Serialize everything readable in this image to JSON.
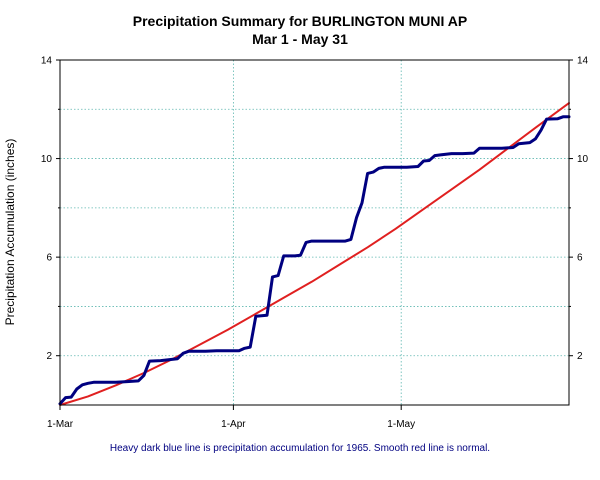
{
  "chart_data": {
    "type": "line",
    "title": "Precipitation Summary for BURLINGTON MUNI AP",
    "subtitle": "Mar 1 - May 31",
    "ylabel": "Precipitation Accumulation (inches)",
    "caption": "Heavy dark blue line is precipitation accumulation for 1965. Smooth red line is normal.",
    "x_range_days": [
      0,
      91
    ],
    "ylim": [
      0,
      14
    ],
    "yticks": [
      2,
      6,
      10,
      14
    ],
    "yticks_minor": [
      4,
      8,
      12
    ],
    "xticks": [
      {
        "day": 0,
        "label": "1-Mar"
      },
      {
        "day": 31,
        "label": "1-Apr"
      },
      {
        "day": 61,
        "label": "1-May"
      }
    ],
    "grid": true,
    "series": [
      {
        "color": "#000080",
        "points": [
          [
            0,
            0.05
          ],
          [
            1,
            0.3
          ],
          [
            2,
            0.32
          ],
          [
            3,
            0.65
          ],
          [
            4,
            0.82
          ],
          [
            5,
            0.88
          ],
          [
            6,
            0.92
          ],
          [
            8,
            0.92
          ],
          [
            10,
            0.92
          ],
          [
            12,
            0.95
          ],
          [
            14,
            0.98
          ],
          [
            15,
            1.2
          ],
          [
            16,
            1.78
          ],
          [
            18,
            1.8
          ],
          [
            20,
            1.85
          ],
          [
            21,
            1.88
          ],
          [
            22,
            2.1
          ],
          [
            23,
            2.18
          ],
          [
            24,
            2.18
          ],
          [
            26,
            2.18
          ],
          [
            28,
            2.2
          ],
          [
            30,
            2.2
          ],
          [
            32,
            2.2
          ],
          [
            33,
            2.3
          ],
          [
            34,
            2.35
          ],
          [
            35,
            3.6
          ],
          [
            36,
            3.62
          ],
          [
            37,
            3.64
          ],
          [
            38,
            5.2
          ],
          [
            39,
            5.25
          ],
          [
            40,
            6.05
          ],
          [
            41,
            6.05
          ],
          [
            42,
            6.05
          ],
          [
            43,
            6.08
          ],
          [
            44,
            6.6
          ],
          [
            45,
            6.65
          ],
          [
            47,
            6.65
          ],
          [
            49,
            6.65
          ],
          [
            51,
            6.65
          ],
          [
            52,
            6.72
          ],
          [
            53,
            7.6
          ],
          [
            54,
            8.2
          ],
          [
            55,
            9.4
          ],
          [
            56,
            9.45
          ],
          [
            57,
            9.6
          ],
          [
            58,
            9.65
          ],
          [
            60,
            9.65
          ],
          [
            62,
            9.65
          ],
          [
            64,
            9.68
          ],
          [
            65,
            9.9
          ],
          [
            66,
            9.92
          ],
          [
            67,
            10.12
          ],
          [
            68,
            10.15
          ],
          [
            70,
            10.2
          ],
          [
            72,
            10.2
          ],
          [
            74,
            10.22
          ],
          [
            75,
            10.42
          ],
          [
            77,
            10.42
          ],
          [
            79,
            10.42
          ],
          [
            81,
            10.45
          ],
          [
            82,
            10.6
          ],
          [
            84,
            10.65
          ],
          [
            85,
            10.8
          ],
          [
            86,
            11.15
          ],
          [
            87,
            11.6
          ],
          [
            89,
            11.62
          ],
          [
            90,
            11.7
          ],
          [
            91,
            11.7
          ]
        ]
      },
      {
        "color": "#e02020",
        "points": [
          [
            0,
            0.0
          ],
          [
            5,
            0.35
          ],
          [
            10,
            0.8
          ],
          [
            15,
            1.3
          ],
          [
            20,
            1.85
          ],
          [
            25,
            2.45
          ],
          [
            30,
            3.05
          ],
          [
            35,
            3.7
          ],
          [
            40,
            4.35
          ],
          [
            45,
            5.0
          ],
          [
            50,
            5.7
          ],
          [
            55,
            6.4
          ],
          [
            60,
            7.15
          ],
          [
            65,
            7.95
          ],
          [
            70,
            8.75
          ],
          [
            75,
            9.55
          ],
          [
            80,
            10.4
          ],
          [
            85,
            11.25
          ],
          [
            91,
            12.25
          ]
        ]
      }
    ]
  }
}
